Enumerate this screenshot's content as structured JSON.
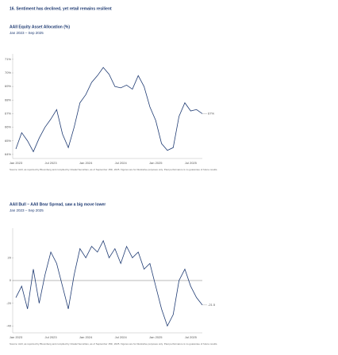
{
  "header": {
    "title": "16. Sentiment has declined, yet retail remains resilient"
  },
  "chart_data": [
    {
      "type": "line",
      "title": "AAII Equity Asset Allocation (%)",
      "subtitle": "Jan 2023 – Sep 2025",
      "categories": [
        "Jan 2023",
        null,
        null,
        null,
        null,
        null,
        "Jul 2023",
        null,
        null,
        null,
        null,
        null,
        "Jan 2024",
        null,
        null,
        null,
        null,
        null,
        "Jul 2024",
        null,
        null,
        null,
        null,
        null,
        "Jan 2025",
        null,
        null,
        null,
        null,
        null,
        "Jul 2025",
        null,
        null
      ],
      "series": [
        {
          "name": "AAII Equity Asset Allocation",
          "color": "#1f3b73",
          "values": [
            64.4,
            65.6,
            65.0,
            64.2,
            65.2,
            66.0,
            66.6,
            67.3,
            65.5,
            64.5,
            66.0,
            67.8,
            68.4,
            69.3,
            69.8,
            70.4,
            69.9,
            69.0,
            68.9,
            69.1,
            68.8,
            69.8,
            69.0,
            67.5,
            66.5,
            64.8,
            64.3,
            64.5,
            66.8,
            67.8,
            67.2,
            67.3,
            67.0
          ]
        }
      ],
      "end_label": "67%",
      "ylim": [
        63.7,
        71.4
      ],
      "yticks": [
        {
          "value": 64,
          "label": "64%"
        },
        {
          "value": 65,
          "label": "65%"
        },
        {
          "value": 66,
          "label": "66%"
        },
        {
          "value": 67,
          "label": "67%"
        },
        {
          "value": 68,
          "label": "68%"
        },
        {
          "value": 69,
          "label": "69%"
        },
        {
          "value": 70,
          "label": "70%"
        },
        {
          "value": 71,
          "label": "71%"
        }
      ],
      "footnote": "Source: AAII, as reported by Bloomberg and compiled by Citadel Securities, as of September 15th, 2025. Figures are for illustrative purposes only. Past performance is no guarantee of future results.",
      "zero_line": false
    },
    {
      "type": "line",
      "title": "AAII Bull – AAII Bear Spread, saw a big move lower",
      "subtitle": "Jan 2023 – Sep 2025",
      "categories": [
        "Jan 2023",
        null,
        null,
        null,
        null,
        null,
        "Jul 2023",
        null,
        null,
        null,
        null,
        null,
        "Jan 2024",
        null,
        null,
        null,
        null,
        null,
        "Jul 2024",
        null,
        null,
        null,
        null,
        null,
        "Jan 2025",
        null,
        null,
        null,
        null,
        null,
        "Jul 2025",
        null,
        null
      ],
      "series": [
        {
          "name": "AAII Bull – Bear Spread",
          "color": "#1f3b73",
          "values": [
            -15,
            -5,
            -25,
            10,
            -20,
            5,
            25,
            15,
            -5,
            -25,
            5,
            28,
            20,
            30,
            25,
            35,
            20,
            28,
            15,
            30,
            20,
            25,
            10,
            15,
            -5,
            -25,
            -40,
            -30,
            0,
            10,
            -5,
            -15,
            -21.5
          ]
        }
      ],
      "end_label": "-21.5",
      "ylim": [
        -46,
        46
      ],
      "yticks": [
        -40,
        -20,
        0,
        20
      ],
      "footnote": "Source: AAII, as reported by Bloomberg and compiled by Citadel Securities, as of September 15th, 2025. Figures are for illustrative purposes only. Past performance is no guarantee of future results.",
      "zero_line": true
    }
  ]
}
